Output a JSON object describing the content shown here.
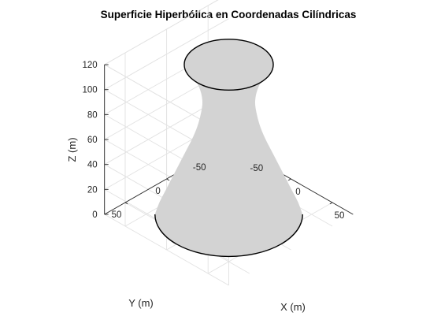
{
  "chart_data": {
    "type": "surface3d",
    "title": "Superficie Hiperbólica en Coordenadas Cilíndricas",
    "xlabel": "X (m)",
    "ylabel": "Y (m)",
    "zlabel": "Z (m)",
    "xlim": [
      -75,
      75
    ],
    "ylim": [
      -75,
      75
    ],
    "zlim": [
      0,
      120
    ],
    "xticks": [
      -50,
      0,
      50
    ],
    "yticks": [
      -50,
      0,
      50
    ],
    "zticks": [
      0,
      20,
      40,
      60,
      80,
      100,
      120
    ],
    "grid": true,
    "surface_color": "#d3d3d3",
    "edge_color": "#000000",
    "profile": {
      "z": [
        0,
        10,
        20,
        30,
        40,
        50,
        60,
        70,
        80,
        90,
        100,
        110,
        120
      ],
      "r": [
        63,
        59,
        53.5,
        48,
        42.5,
        37,
        31.5,
        27,
        24,
        22.5,
        24.5,
        30,
        38
      ]
    }
  }
}
